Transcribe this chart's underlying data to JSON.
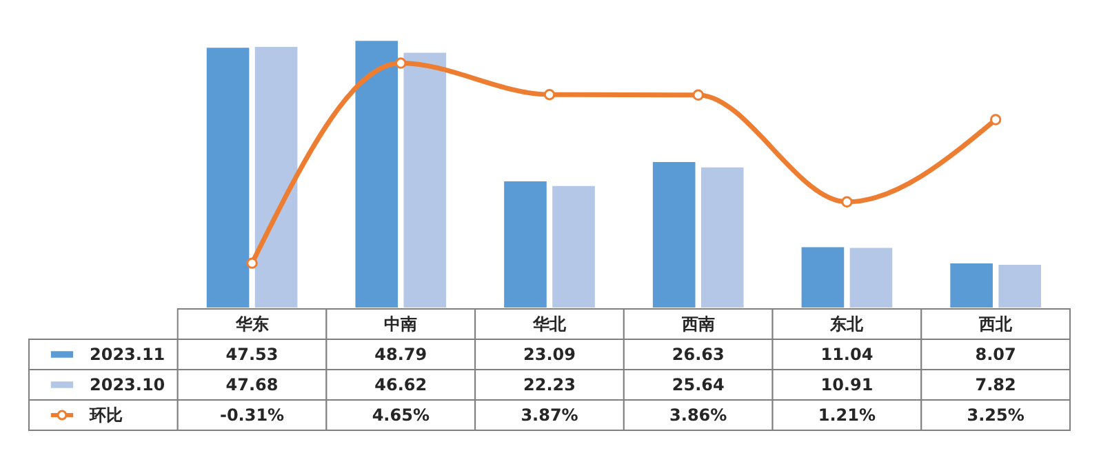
{
  "chart_data": {
    "type": "bar",
    "categories": [
      "华东",
      "中南",
      "华北",
      "西南",
      "东北",
      "西北"
    ],
    "series": [
      {
        "name": "2023.11",
        "color": "#5b9bd5",
        "values": [
          47.53,
          48.79,
          23.09,
          26.63,
          11.04,
          8.07
        ]
      },
      {
        "name": "2023.10",
        "color": "#b4c7e7",
        "values": [
          47.68,
          46.62,
          22.23,
          25.64,
          10.91,
          7.82
        ]
      },
      {
        "name": "环比",
        "type": "line",
        "axis": "y2",
        "color": "#ed7d31",
        "values": [
          -0.31,
          4.65,
          3.87,
          3.86,
          1.21,
          3.25
        ],
        "value_labels": [
          "-0.31%",
          "4.65%",
          "3.87%",
          "3.86%",
          "1.21%",
          "3.25%"
        ]
      }
    ],
    "data_labels": true,
    "legend": "bottom",
    "marker": "circle",
    "grid": false
  }
}
